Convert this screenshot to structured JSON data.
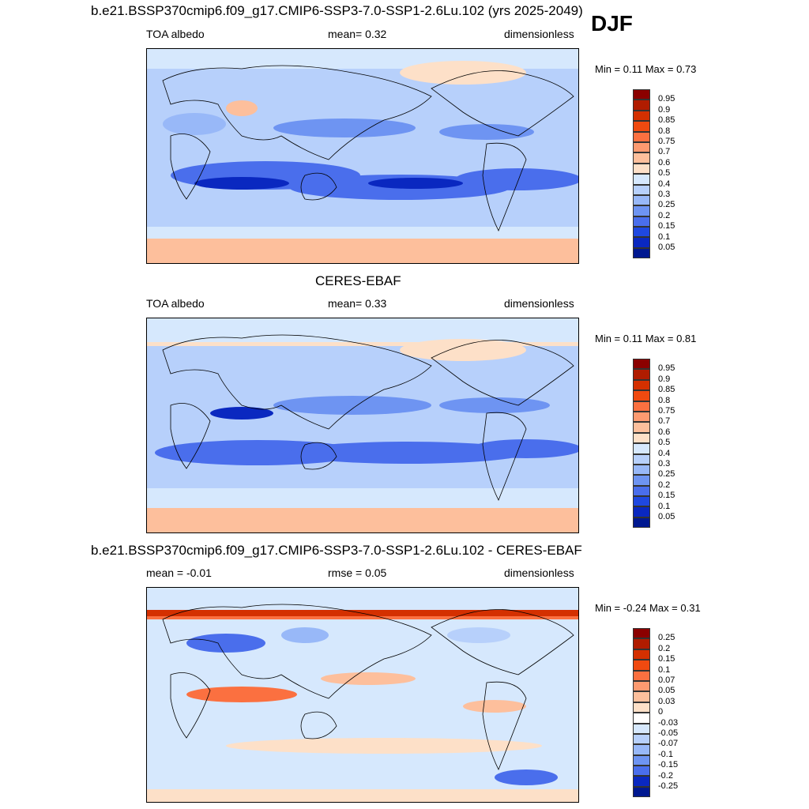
{
  "season": "DJF",
  "panels": [
    {
      "title": "b.e21.BSSP370cmip6.f09_g17.CMIP6-SSP3-7.0-SSP1-2.6Lu.102 (yrs 2025-2049)",
      "left": "TOA albedo",
      "center": "mean=   0.32",
      "right": "dimensionless",
      "minmax": "Min =   0.11 Max =   0.73",
      "kind": "model"
    },
    {
      "title": "CERES-EBAF",
      "left": "TOA albedo",
      "center": "mean=   0.33",
      "right": "dimensionless",
      "minmax": "Min =   0.11 Max =   0.81",
      "kind": "obs"
    },
    {
      "title": "b.e21.BSSP370cmip6.f09_g17.CMIP6-SSP3-7.0-SSP1-2.6Lu.102 - CERES-EBAF",
      "left": "mean =  -0.01",
      "center": "rmse =   0.05",
      "right": "dimensionless",
      "minmax": "Min =  -0.24 Max =   0.31",
      "kind": "diff"
    }
  ],
  "colorbar_abs": {
    "labels": [
      "0.95",
      "0.9",
      "0.85",
      "0.8",
      "0.75",
      "0.7",
      "0.6",
      "0.5",
      "0.4",
      "0.3",
      "0.25",
      "0.2",
      "0.15",
      "0.1",
      "0.05"
    ],
    "colors": [
      "#8b0000",
      "#b01c00",
      "#d43000",
      "#f04a10",
      "#fb7040",
      "#fd9a70",
      "#fdbf9c",
      "#fde0c8",
      "#d6e8fd",
      "#b7d0fb",
      "#98b8f8",
      "#6e94f2",
      "#4a6eec",
      "#1f48e0",
      "#0a28c0",
      "#001890"
    ]
  },
  "colorbar_diff": {
    "labels": [
      "0.25",
      "0.2",
      "0.15",
      "0.1",
      "0.07",
      "0.05",
      "0.03",
      "0",
      "-0.03",
      "-0.05",
      "-0.07",
      "-0.1",
      "-0.15",
      "-0.2",
      "-0.25"
    ],
    "colors": [
      "#8b0000",
      "#b01c00",
      "#d43000",
      "#f04a10",
      "#fb7040",
      "#fd9a70",
      "#fdbf9c",
      "#fde0c8",
      "#ffffff",
      "#d6e8fd",
      "#b7d0fb",
      "#98b8f8",
      "#6e94f2",
      "#4a6eec",
      "#0a28c0",
      "#001890"
    ]
  }
}
